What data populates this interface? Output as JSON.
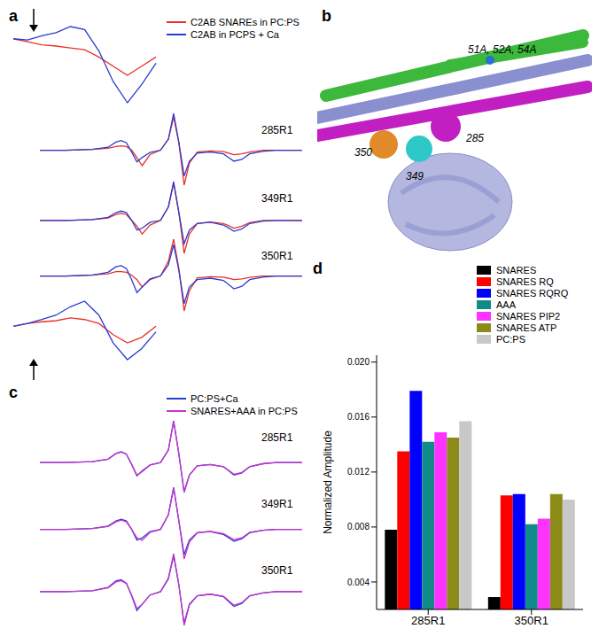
{
  "panel_labels": [
    "a",
    "b",
    "c",
    "d"
  ],
  "chart_data": [
    {
      "type": "line",
      "tick_labels": false,
      "series": [
        {
          "name": "C2AB SNAREs in PC:PS",
          "color": "#e8312a"
        },
        {
          "name": "C2AB in PCPS + Ca",
          "color": "#2b3bd1"
        }
      ],
      "traces": [
        {
          "label": "285R1",
          "x": [
            0,
            10,
            20,
            26,
            29,
            31,
            33,
            35,
            37,
            39,
            42,
            46,
            49,
            51,
            53,
            55,
            57,
            60,
            65,
            70,
            74,
            77,
            80,
            85,
            90,
            100
          ],
          "values": [
            [
              0,
              0,
              0.02,
              0.05,
              0.1,
              0.12,
              0.1,
              0,
              -0.2,
              -0.42,
              -0.12,
              0,
              0.3,
              0.9,
              0.2,
              -0.95,
              -0.35,
              -0.05,
              -0.02,
              -0.04,
              -0.12,
              -0.1,
              -0.05,
              0,
              0,
              0
            ],
            [
              0,
              0,
              0.02,
              0.08,
              0.22,
              0.26,
              0.2,
              -0.05,
              -0.32,
              -0.2,
              -0.06,
              0,
              0.3,
              1.0,
              0.2,
              -0.7,
              -0.3,
              -0.08,
              -0.05,
              -0.1,
              -0.3,
              -0.25,
              -0.1,
              -0.03,
              0,
              0
            ]
          ]
        },
        {
          "label": "349R1",
          "x": [
            0,
            10,
            20,
            26,
            29,
            31,
            33,
            35,
            37,
            39,
            42,
            46,
            49,
            51,
            53,
            55,
            57,
            60,
            65,
            70,
            74,
            77,
            80,
            85,
            90,
            100
          ],
          "values": [
            [
              0,
              0,
              0.02,
              0.06,
              0.15,
              0.18,
              0.15,
              0,
              -0.15,
              -0.35,
              -0.12,
              0,
              0.35,
              0.95,
              0.2,
              -0.85,
              -0.35,
              -0.08,
              -0.04,
              -0.08,
              -0.2,
              -0.15,
              -0.06,
              0,
              0,
              0
            ],
            [
              0,
              0,
              0.02,
              0.08,
              0.2,
              0.24,
              0.2,
              0,
              -0.25,
              -0.2,
              -0.05,
              0,
              0.35,
              1.0,
              0.2,
              -0.6,
              -0.25,
              -0.08,
              -0.05,
              -0.12,
              -0.28,
              -0.22,
              -0.08,
              -0.02,
              0,
              0
            ]
          ]
        },
        {
          "label": "350R1",
          "x": [
            0,
            10,
            20,
            26,
            29,
            31,
            33,
            35,
            37,
            39,
            42,
            46,
            49,
            51,
            53,
            55,
            57,
            60,
            65,
            70,
            74,
            77,
            80,
            85,
            90,
            100
          ],
          "values": [
            [
              0,
              0,
              0.03,
              0.06,
              0.12,
              0.12,
              0.1,
              0.02,
              -0.1,
              -0.3,
              -0.1,
              0,
              0.4,
              1.0,
              0.2,
              -0.95,
              -0.4,
              -0.05,
              -0.02,
              -0.03,
              -0.1,
              -0.08,
              -0.04,
              0,
              0,
              0
            ],
            [
              0,
              0,
              0.02,
              0.1,
              0.25,
              0.28,
              0.2,
              -0.1,
              -0.45,
              -0.3,
              -0.08,
              0,
              0.3,
              0.85,
              0.15,
              -0.75,
              -0.3,
              -0.1,
              -0.06,
              -0.12,
              -0.35,
              -0.28,
              -0.1,
              -0.03,
              0,
              0
            ]
          ]
        }
      ],
      "insets": [
        {
          "x": [
            0,
            10,
            20,
            30,
            40,
            50,
            60,
            70,
            80,
            90,
            100
          ],
          "values": [
            [
              0.3,
              0.25,
              0.2,
              0.18,
              0.15,
              0.12,
              0.0,
              -0.15,
              -0.3,
              -0.15,
              0.0
            ],
            [
              0.3,
              0.28,
              0.35,
              0.4,
              0.5,
              0.45,
              0.1,
              -0.4,
              -0.75,
              -0.45,
              -0.1
            ]
          ]
        },
        {
          "x": [
            0,
            10,
            20,
            30,
            40,
            50,
            60,
            70,
            80,
            90,
            100
          ],
          "values": [
            [
              0,
              0.05,
              0.08,
              0.1,
              0.15,
              0.12,
              0.05,
              -0.15,
              -0.3,
              -0.2,
              0
            ],
            [
              0,
              0.05,
              0.12,
              0.2,
              0.35,
              0.45,
              0.2,
              -0.3,
              -0.6,
              -0.4,
              -0.1
            ]
          ]
        }
      ]
    },
    {
      "type": "line",
      "tick_labels": false,
      "series": [
        {
          "name": "PC:PS+Ca",
          "color": "#2b3bd1"
        },
        {
          "name": "SNARES+AAA in PC:PS",
          "color": "#cc33cc"
        }
      ],
      "traces": [
        {
          "label": "285R1",
          "x": [
            0,
            10,
            20,
            26,
            29,
            31,
            33,
            35,
            37,
            39,
            42,
            46,
            49,
            51,
            53,
            55,
            57,
            60,
            65,
            70,
            74,
            77,
            80,
            85,
            90,
            100
          ],
          "values": [
            [
              0,
              0,
              0.02,
              0.08,
              0.22,
              0.26,
              0.2,
              -0.05,
              -0.32,
              -0.2,
              -0.06,
              0,
              0.3,
              1.0,
              0.2,
              -0.7,
              -0.3,
              -0.08,
              -0.05,
              -0.1,
              -0.3,
              -0.25,
              -0.1,
              -0.03,
              0,
              0
            ],
            [
              0,
              0,
              0.02,
              0.08,
              0.21,
              0.25,
              0.2,
              -0.04,
              -0.3,
              -0.22,
              -0.06,
              0,
              0.3,
              0.98,
              0.2,
              -0.72,
              -0.3,
              -0.08,
              -0.05,
              -0.1,
              -0.28,
              -0.24,
              -0.1,
              -0.03,
              0,
              0
            ]
          ]
        },
        {
          "label": "349R1",
          "x": [
            0,
            10,
            20,
            26,
            29,
            31,
            33,
            35,
            37,
            39,
            42,
            46,
            49,
            51,
            53,
            55,
            57,
            60,
            65,
            70,
            74,
            77,
            80,
            85,
            90,
            100
          ],
          "values": [
            [
              0,
              0,
              0.02,
              0.08,
              0.2,
              0.24,
              0.2,
              0,
              -0.25,
              -0.2,
              -0.05,
              0,
              0.35,
              1.0,
              0.2,
              -0.6,
              -0.25,
              -0.08,
              -0.05,
              -0.12,
              -0.28,
              -0.22,
              -0.08,
              -0.02,
              0,
              0
            ],
            [
              0,
              0,
              0.02,
              0.07,
              0.18,
              0.22,
              0.18,
              0,
              -0.2,
              -0.26,
              -0.07,
              0,
              0.35,
              0.97,
              0.2,
              -0.7,
              -0.3,
              -0.08,
              -0.05,
              -0.1,
              -0.24,
              -0.2,
              -0.07,
              -0.02,
              0,
              0
            ]
          ]
        },
        {
          "label": "350R1",
          "x": [
            0,
            10,
            20,
            26,
            29,
            31,
            33,
            35,
            37,
            39,
            42,
            46,
            49,
            51,
            53,
            55,
            57,
            60,
            65,
            70,
            74,
            77,
            80,
            85,
            90,
            100
          ],
          "values": [
            [
              0,
              0,
              0.02,
              0.1,
              0.25,
              0.28,
              0.2,
              -0.1,
              -0.45,
              -0.3,
              -0.08,
              0,
              0.3,
              0.85,
              0.15,
              -0.75,
              -0.3,
              -0.1,
              -0.06,
              -0.12,
              -0.35,
              -0.28,
              -0.1,
              -0.03,
              0,
              0
            ],
            [
              0,
              0,
              0.02,
              0.09,
              0.23,
              0.26,
              0.19,
              -0.08,
              -0.4,
              -0.3,
              -0.08,
              0,
              0.32,
              0.9,
              0.16,
              -0.8,
              -0.32,
              -0.1,
              -0.06,
              -0.11,
              -0.32,
              -0.26,
              -0.1,
              -0.03,
              0,
              0
            ]
          ]
        }
      ]
    },
    {
      "type": "bar",
      "categories": [
        "285R1",
        "350R1"
      ],
      "y_label": "Normalized Amplitude",
      "ylim": [
        0.002,
        0.0205
      ],
      "yticks": [
        0.004,
        0.008,
        0.012,
        0.016,
        {
          "value": 0.02,
          "label": "0.020"
        }
      ],
      "series": [
        {
          "name": "SNARES",
          "color": "#000000",
          "values": [
            0.0078,
            0.0029
          ]
        },
        {
          "name": "SNARES RQ",
          "color": "#ff0000",
          "values": [
            0.0135,
            0.0103
          ]
        },
        {
          "name": "SNARES RQRQ",
          "color": "#0000ff",
          "values": [
            0.0179,
            0.0104
          ]
        },
        {
          "name": "AAA",
          "color": "#138a8a",
          "values": [
            0.0142,
            0.0082
          ]
        },
        {
          "name": "SNARES PIP2",
          "color": "#ff33ff",
          "values": [
            0.0149,
            0.0086
          ]
        },
        {
          "name": "SNARES ATP",
          "color": "#8b8b1a",
          "values": [
            0.0145,
            0.0104
          ]
        },
        {
          "name": "PC:PS",
          "color": "#c8c8c8",
          "values": [
            0.0157,
            0.01
          ]
        }
      ]
    }
  ],
  "diagram": {
    "labels": [
      "51A, 52A, 54A",
      "350",
      "349",
      "285"
    ]
  }
}
